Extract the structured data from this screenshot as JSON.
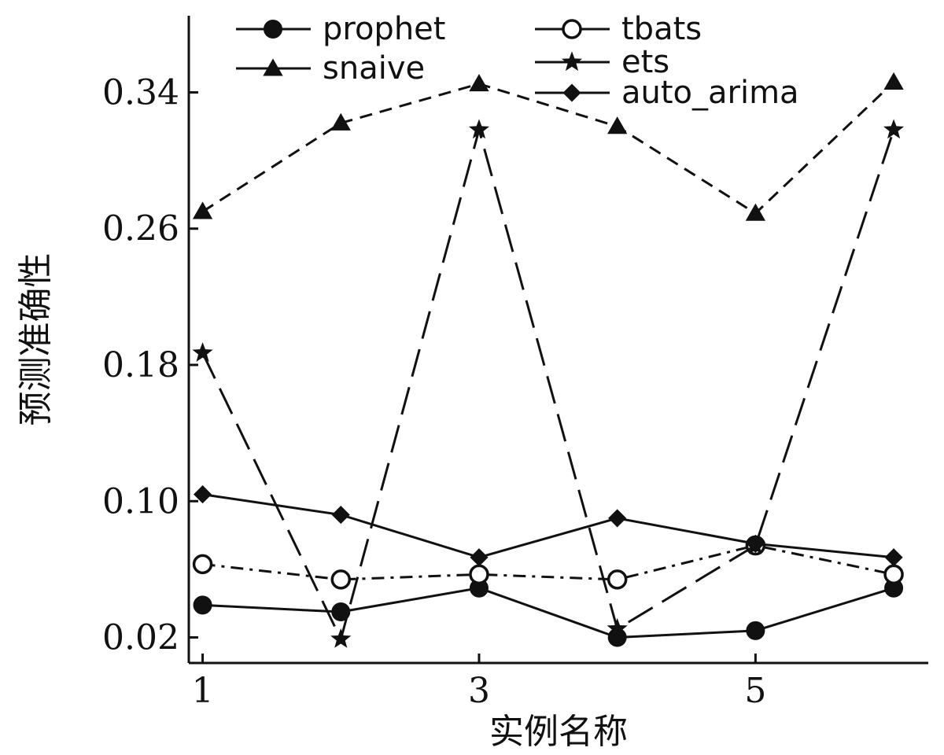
{
  "chart_data": {
    "type": "line",
    "title": "",
    "xlabel": "实例名称",
    "ylabel": "预测准确性",
    "x": [
      1,
      2,
      3,
      4,
      5,
      6
    ],
    "xticks": [
      "1",
      "3",
      "5"
    ],
    "yticks": [
      "0.02",
      "0.10",
      "0.18",
      "0.26",
      "0.34"
    ],
    "xlim": [
      0.9,
      6.25
    ],
    "ylim": [
      0.005,
      0.385
    ],
    "grid": false,
    "legend_position": "top",
    "series": [
      {
        "name": "prophet",
        "marker": "filled-circle",
        "line_style": "solid",
        "color": "#111111",
        "values": [
          0.039,
          0.035,
          0.049,
          0.02,
          0.024,
          0.049
        ]
      },
      {
        "name": "tbats",
        "marker": "open-circle",
        "line_style": "dash-dot",
        "color": "#111111",
        "values": [
          0.063,
          0.054,
          0.057,
          0.054,
          0.074,
          0.057
        ]
      },
      {
        "name": "snaive",
        "marker": "filled-triangle",
        "line_style": "dashed",
        "color": "#111111",
        "values": [
          0.27,
          0.322,
          0.345,
          0.32,
          0.269,
          0.346
        ]
      },
      {
        "name": "ets",
        "marker": "star",
        "line_style": "long-dashed",
        "color": "#111111",
        "values": [
          0.187,
          0.019,
          0.318,
          0.025,
          0.074,
          0.318
        ]
      },
      {
        "name": "auto_arima",
        "marker": "filled-diamond",
        "line_style": "solid",
        "color": "#111111",
        "values": [
          0.104,
          0.092,
          0.067,
          0.09,
          0.075,
          0.067
        ]
      }
    ]
  }
}
